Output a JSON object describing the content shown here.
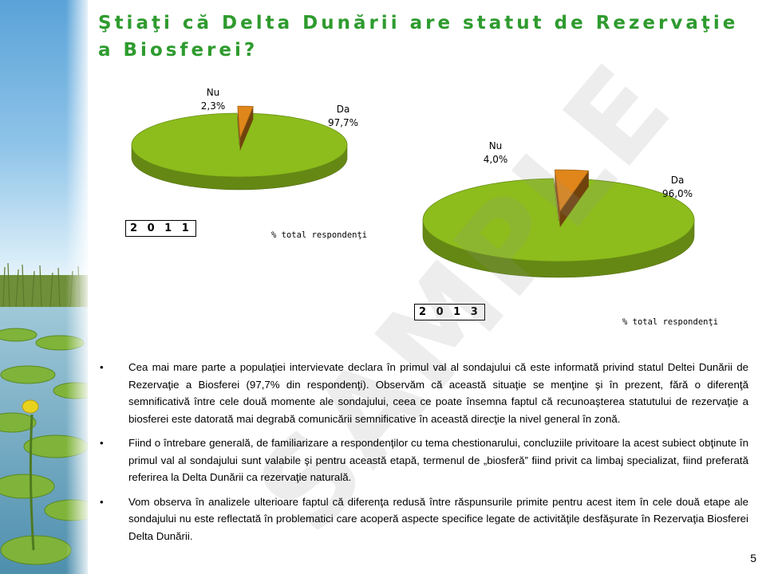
{
  "title": "Ştiaţi că Delta Dunării are statut de Rezervaţie a Biosferei?",
  "colors": {
    "title": "#2e9b2e",
    "da_slice": "#8cbd1c",
    "nu_slice": "#e0861a"
  },
  "chart_data": [
    {
      "type": "pie",
      "title": "2 0 1 1",
      "categories": [
        "Da",
        "Nu"
      ],
      "values": [
        97.7,
        2.3
      ],
      "labels": [
        {
          "name": "Da",
          "value": "97,7%"
        },
        {
          "name": "Nu",
          "value": "2,3%"
        }
      ],
      "note": "% total respondenţi"
    },
    {
      "type": "pie",
      "title": "2 0 1 3",
      "categories": [
        "Da",
        "Nu"
      ],
      "values": [
        96.0,
        4.0
      ],
      "labels": [
        {
          "name": "Da",
          "value": "96,0%"
        },
        {
          "name": "Nu",
          "value": "4,0%"
        }
      ],
      "note": "% total respondenţi"
    }
  ],
  "bullets": [
    "Cea mai mare parte a populaţiei intervievate declara în primul val al sondajului că este informată privind statul Deltei Dunării de Rezervaţie a Biosferei (97,7% din respondenţi). Observăm că această situaţie se menţine şi în prezent, fără o diferenţă semnificativă între cele două momente ale sondajului, ceea ce poate însemna faptul că recunoaşterea statutului de rezervaţie a biosferei este datorată mai degrabă comunicării semnificative în această direcţie la nivel general în zonă.",
    "Fiind o întrebare generală, de familiarizare a respondenţilor cu tema chestionarului, concluziile privitoare la acest subiect obţinute în primul val al sondajului sunt valabile şi pentru această etapă, termenul de „biosferă” fiind privit ca limbaj specializat, fiind preferată referirea la Delta Dunării ca rezervaţie naturală.",
    "Vom observa în analizele ulterioare faptul că diferenţa redusă între răspunsurile primite pentru acest item în cele două etape ale sondajului nu este reflectată în problematici care acoperă aspecte specifice legate de activităţile desfăşurate în Rezervaţia Biosferei Delta Dunării."
  ],
  "bullet_symbol": "•",
  "watermark": "SAMPLE",
  "page_number": "5"
}
